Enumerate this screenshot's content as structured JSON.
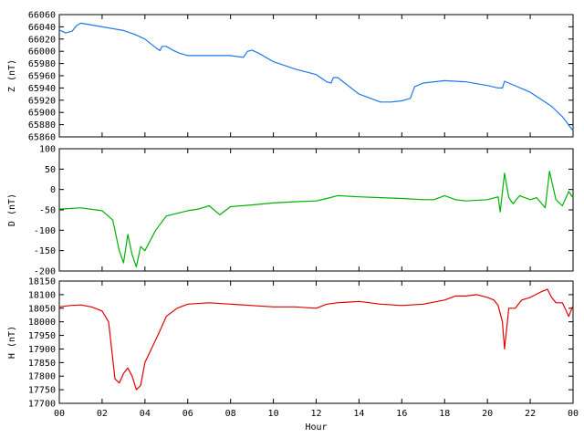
{
  "chart_data": [
    {
      "type": "line",
      "ylabel": "Z (nT)",
      "ylim": [
        65860,
        66060
      ],
      "yticks": [
        65860,
        65880,
        65900,
        65920,
        65940,
        65960,
        65980,
        66000,
        66020,
        66040,
        66060
      ],
      "xlim": [
        0,
        24
      ],
      "grid": false,
      "color": "#1f77e8",
      "series": [
        {
          "x": [
            0,
            0.3,
            0.6,
            0.8,
            1.0,
            1.5,
            2.0,
            3.0,
            3.5,
            4.0,
            4.5,
            4.7,
            4.8,
            5.0,
            5.3,
            5.6,
            6.0,
            7.0,
            8.0,
            8.6,
            8.8,
            9.0,
            9.3,
            10.0,
            11.0,
            12.0,
            12.5,
            12.7,
            12.8,
            13.0,
            14.0,
            15.0,
            15.5,
            16.0,
            16.4,
            16.6,
            17.0,
            18.0,
            19.0,
            20.0,
            20.5,
            20.7,
            20.8,
            21.0,
            22.0,
            23.0,
            23.5,
            24.0
          ],
          "values": [
            66035,
            66030,
            66033,
            66042,
            66046,
            66043,
            66040,
            66034,
            66028,
            66020,
            66006,
            66001,
            66008,
            66008,
            66002,
            65997,
            65993,
            65993,
            65993,
            65990,
            66000,
            66002,
            65997,
            65983,
            65971,
            65962,
            65950,
            65948,
            65957,
            65957,
            65930,
            65917,
            65917,
            65919,
            65923,
            65942,
            65948,
            65952,
            65950,
            65944,
            65940,
            65940,
            65951,
            65948,
            65933,
            65910,
            65893,
            65870
          ]
        }
      ]
    },
    {
      "type": "line",
      "ylabel": "D (nT)",
      "ylim": [
        -200,
        100
      ],
      "yticks": [
        -200,
        -150,
        -100,
        -50,
        0,
        50,
        100
      ],
      "xlim": [
        0,
        24
      ],
      "grid": false,
      "color": "#00b000",
      "series": [
        {
          "x": [
            0,
            1.0,
            2.0,
            2.5,
            2.8,
            3.0,
            3.2,
            3.4,
            3.6,
            3.8,
            4.0,
            4.5,
            5.0,
            6.0,
            6.5,
            7.0,
            7.5,
            8.0,
            9.0,
            10.0,
            11.0,
            12.0,
            12.5,
            13.0,
            14.0,
            15.0,
            16.0,
            17.0,
            17.5,
            18.0,
            18.5,
            19.0,
            20.0,
            20.5,
            20.6,
            20.8,
            21.0,
            21.2,
            21.5,
            22.0,
            22.3,
            22.7,
            22.9,
            23.2,
            23.5,
            23.8,
            24.0
          ],
          "values": [
            -48,
            -45,
            -52,
            -75,
            -150,
            -180,
            -110,
            -160,
            -190,
            -140,
            -150,
            -100,
            -65,
            -52,
            -48,
            -40,
            -62,
            -42,
            -38,
            -33,
            -30,
            -28,
            -22,
            -15,
            -18,
            -20,
            -22,
            -25,
            -25,
            -15,
            -25,
            -28,
            -25,
            -18,
            -55,
            40,
            -20,
            -35,
            -15,
            -25,
            -20,
            -45,
            45,
            -25,
            -40,
            -5,
            -20
          ]
        }
      ]
    },
    {
      "type": "line",
      "ylabel": "H (nT)",
      "xlabel": "Hour",
      "ylim": [
        17700,
        18150
      ],
      "yticks": [
        17700,
        17750,
        17800,
        17850,
        17900,
        17950,
        18000,
        18050,
        18100,
        18150
      ],
      "xlim": [
        0,
        24
      ],
      "xticks": [
        "00",
        "02",
        "04",
        "06",
        "08",
        "10",
        "12",
        "14",
        "16",
        "18",
        "20",
        "22",
        "00"
      ],
      "grid": false,
      "color": "#e00000",
      "series": [
        {
          "x": [
            0,
            0.5,
            1.0,
            1.5,
            2.0,
            2.3,
            2.6,
            2.8,
            3.0,
            3.2,
            3.4,
            3.6,
            3.8,
            4.0,
            4.3,
            4.6,
            5.0,
            5.5,
            6.0,
            7.0,
            8.0,
            9.0,
            10.0,
            11.0,
            12.0,
            12.5,
            13.0,
            14.0,
            15.0,
            16.0,
            17.0,
            18.0,
            18.5,
            19.0,
            19.5,
            20.0,
            20.3,
            20.5,
            20.7,
            20.8,
            21.0,
            21.3,
            21.6,
            22.0,
            22.5,
            22.8,
            23.0,
            23.2,
            23.5,
            23.8,
            24.0
          ],
          "values": [
            18055,
            18060,
            18062,
            18055,
            18040,
            18000,
            17790,
            17775,
            17810,
            17830,
            17800,
            17750,
            17765,
            17850,
            17900,
            17950,
            18020,
            18050,
            18065,
            18070,
            18065,
            18060,
            18055,
            18055,
            18050,
            18065,
            18070,
            18075,
            18065,
            18060,
            18065,
            18080,
            18095,
            18095,
            18100,
            18090,
            18080,
            18060,
            18000,
            17900,
            18050,
            18050,
            18080,
            18090,
            18110,
            18120,
            18090,
            18070,
            18070,
            18020,
            18060
          ]
        }
      ]
    }
  ]
}
